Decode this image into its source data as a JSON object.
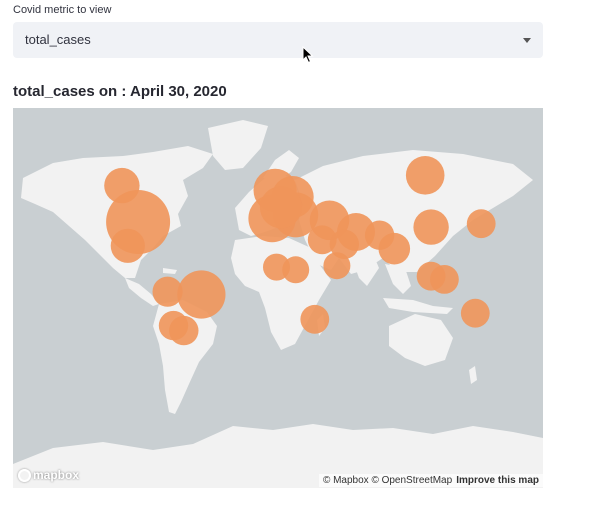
{
  "select": {
    "label": "Covid metric to view",
    "value": "total_cases"
  },
  "chart": {
    "title": "total_cases on : April 30, 2020"
  },
  "map": {
    "attribution_text": "© Mapbox © OpenStreetMap",
    "improve_link": "Improve this map",
    "logo_text": "mapbox",
    "colors": {
      "water": "#c9cfd2",
      "land": "#f2f2f2",
      "marker": "#f0955a"
    }
  },
  "chart_data": {
    "type": "scatter",
    "title": "total_cases on : April 30, 2020",
    "marker_color": "#f0955a",
    "points": [
      {
        "location": "Canada",
        "lon": -106,
        "lat": 56,
        "relative_size": 0.22
      },
      {
        "location": "United States",
        "lon": -95,
        "lat": 38,
        "relative_size": 1.0
      },
      {
        "location": "Peru",
        "lon": -75,
        "lat": -10,
        "relative_size": 0.14
      },
      {
        "location": "Chile",
        "lon": -71,
        "lat": -33,
        "relative_size": 0.13
      },
      {
        "location": "Argentina",
        "lon": -64,
        "lat": -36,
        "relative_size": 0.13
      },
      {
        "location": "Brazil",
        "lon": -52,
        "lat": -12,
        "relative_size": 0.5
      },
      {
        "location": "Spain",
        "lon": -4,
        "lat": 40,
        "relative_size": 0.48
      },
      {
        "location": "Italy",
        "lon": 12,
        "lat": 42,
        "relative_size": 0.42
      },
      {
        "location": "Germany",
        "lon": 10,
        "lat": 51,
        "relative_size": 0.35
      },
      {
        "location": "United Kingdom",
        "lon": -2,
        "lat": 54,
        "relative_size": 0.38
      },
      {
        "location": "France",
        "lon": 2,
        "lat": 46,
        "relative_size": 0.35
      },
      {
        "location": "Turkey",
        "lon": 35,
        "lat": 39,
        "relative_size": 0.3
      },
      {
        "location": "Iran",
        "lon": 53,
        "lat": 32,
        "relative_size": 0.27
      },
      {
        "location": "Russia",
        "lon": 100,
        "lat": 60,
        "relative_size": 0.28
      },
      {
        "location": "China",
        "lon": 104,
        "lat": 35,
        "relative_size": 0.22
      },
      {
        "location": "India",
        "lon": 79,
        "lat": 21,
        "relative_size": 0.16
      },
      {
        "location": "Pakistan",
        "lon": 69,
        "lat": 30,
        "relative_size": 0.13
      },
      {
        "location": "Saudi Arabia",
        "lon": 45,
        "lat": 24,
        "relative_size": 0.13
      },
      {
        "location": "Japan",
        "lon": 138,
        "lat": 37,
        "relative_size": 0.12
      },
      {
        "location": "Indonesia",
        "lon": 113,
        "lat": -1,
        "relative_size": 0.12
      },
      {
        "location": "Australia",
        "lon": 134,
        "lat": -25,
        "relative_size": 0.12
      },
      {
        "location": "South Africa",
        "lon": 25,
        "lat": -29,
        "relative_size": 0.12
      },
      {
        "location": "Cameroon",
        "lon": 12,
        "lat": 6,
        "relative_size": 0.1
      },
      {
        "location": "Egypt",
        "lon": 30,
        "lat": 27,
        "relative_size": 0.12
      },
      {
        "location": "Ghana",
        "lon": -1,
        "lat": 8,
        "relative_size": 0.1
      },
      {
        "location": "Singapore",
        "lon": 104,
        "lat": 1.3,
        "relative_size": 0.12
      },
      {
        "location": "Ethiopia",
        "lon": 40,
        "lat": 9,
        "relative_size": 0.1
      },
      {
        "location": "Mexico",
        "lon": -102,
        "lat": 23,
        "relative_size": 0.2
      }
    ]
  }
}
